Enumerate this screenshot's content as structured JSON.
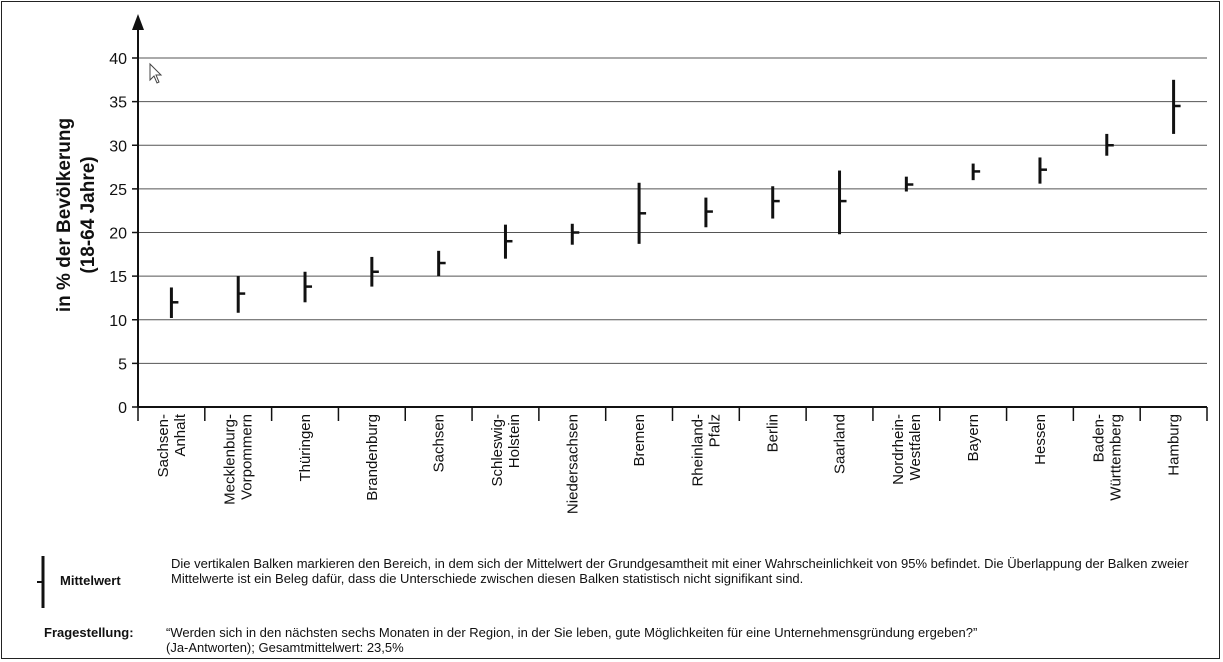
{
  "chart_data": {
    "type": "errorbar",
    "ylabel": [
      "in % der Bevölkerung",
      "(18-64 Jahre)"
    ],
    "xlabel": "",
    "ylim": [
      0,
      40
    ],
    "yticks": [
      0,
      5,
      10,
      15,
      20,
      25,
      30,
      35,
      40
    ],
    "grid": true,
    "categories": [
      [
        "Sachsen-",
        "Anhalt"
      ],
      [
        "Mecklenburg-",
        "Vorpommern"
      ],
      [
        "Thüringen"
      ],
      [
        "Brandenburg"
      ],
      [
        "Sachsen"
      ],
      [
        "Schleswig-",
        "Holstein"
      ],
      [
        "Niedersachsen"
      ],
      [
        "Bremen"
      ],
      [
        "Rheinland-",
        "Pfalz"
      ],
      [
        "Berlin"
      ],
      [
        "Saarland"
      ],
      [
        "Nordrhein-",
        "Westfalen"
      ],
      [
        "Bayern"
      ],
      [
        "Hessen"
      ],
      [
        "Baden-",
        "Württemberg"
      ],
      [
        "Hamburg"
      ]
    ],
    "series": [
      {
        "mean": [
          12.0,
          13.0,
          13.8,
          15.5,
          16.5,
          19.0,
          20.0,
          22.2,
          22.4,
          23.6,
          23.6,
          25.5,
          27.0,
          27.2,
          30.0,
          34.5
        ],
        "lower": [
          10.2,
          10.8,
          12.0,
          13.8,
          15.0,
          17.0,
          18.6,
          18.7,
          20.6,
          21.6,
          19.8,
          24.7,
          26.0,
          25.6,
          28.8,
          31.3
        ],
        "upper": [
          13.7,
          15.0,
          15.5,
          17.2,
          17.9,
          20.9,
          21.0,
          25.7,
          24.0,
          25.3,
          27.1,
          26.4,
          27.9,
          28.6,
          31.3,
          37.5
        ]
      }
    ]
  },
  "legend": {
    "label": "Mittelwert",
    "text": "Die vertikalen Balken markieren den Bereich, in dem sich der Mittelwert der Grundgesamtheit mit einer Wahrscheinlichkeit von 95% befindet. Die Überlappung der Balken zweier Mittelwerte ist ein Beleg dafür, dass die Unterschiede zwischen diesen Balken statistisch nicht signifikant sind."
  },
  "question": {
    "label": "Fragestellung:",
    "line1": "“Werden sich in den nächsten sechs Monaten in der Region, in der Sie leben, gute Möglichkeiten für eine Unternehmensgründung ergeben?”",
    "line2": "(Ja-Antworten); Gesamtmittelwert: 23,5%"
  }
}
